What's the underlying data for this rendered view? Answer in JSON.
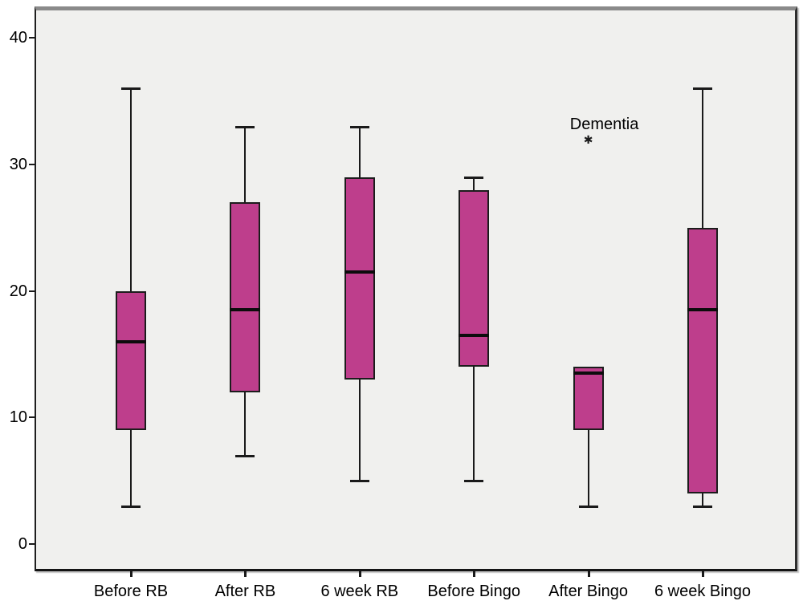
{
  "chart_data": {
    "type": "boxplot",
    "title": "",
    "xlabel": "",
    "ylabel": "",
    "legend": "none",
    "grid": false,
    "categories": [
      "Before RB",
      "After RB",
      "6 week RB",
      "Before Bingo",
      "After Bingo",
      "6 week Bingo"
    ],
    "y_axis": {
      "ticks": [
        0,
        10,
        20,
        30,
        40
      ],
      "range_min": -2.15,
      "range_max": 42.5
    },
    "boxes": [
      {
        "category": "Before RB",
        "min": 3,
        "q1": 9,
        "median": 16,
        "q3": 20,
        "max": 36,
        "outliers": []
      },
      {
        "category": "After RB",
        "min": 7,
        "q1": 12,
        "median": 18.5,
        "q3": 27,
        "max": 33,
        "outliers": []
      },
      {
        "category": "6 week RB",
        "min": 5,
        "q1": 13,
        "median": 21.5,
        "q3": 29,
        "max": 33,
        "outliers": []
      },
      {
        "category": "Before Bingo",
        "min": 5,
        "q1": 14,
        "median": 16.5,
        "q3": 28,
        "max": 29,
        "outliers": []
      },
      {
        "category": "After Bingo",
        "min": 3,
        "q1": 9,
        "median": 13.5,
        "q3": 14,
        "max": 14,
        "outliers": [
          {
            "value": 32,
            "label": "Dementia",
            "marker_glyph": "✱"
          }
        ]
      },
      {
        "category": "6 week Bingo",
        "min": 3,
        "q1": 4,
        "median": 18.5,
        "q3": 25,
        "max": 36,
        "outliers": []
      }
    ],
    "colors": {
      "box_fill": "#be3e8c",
      "box_border": "#1c1c1c",
      "median": "#0c0c0c",
      "whisker": "#1a1a1a",
      "plot_background": "#f0f0ee",
      "top_border": "#8a8a8a",
      "axis_text": "#000000"
    }
  }
}
